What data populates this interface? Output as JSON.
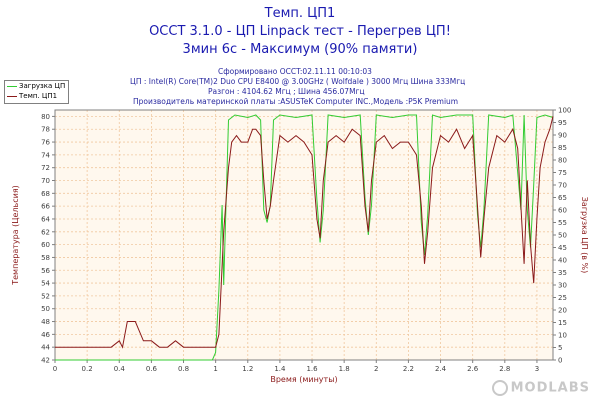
{
  "header": {
    "title1": "Темп. ЦП1",
    "title2": "OCCT 3.1.0 - ЦП Linpack тест - Перегрев ЦП!",
    "title3": "3мин 6с - Максимум (90% памяти)"
  },
  "info": {
    "generated": "Сформировано OCCT:02.11.11 00:10:03",
    "cpu": "ЦП : Intel(R) Core(TM)2 Duo CPU E8400 @ 3.00GHz ( Wolfdale ) 3000 Мгц Шина 333Мгц",
    "overclock": "Разгон : 4104.62 Мгц ; Шина 456.07Мгц",
    "motherboard": "Производитель материнской платы :ASUSTeK Computer INC.,Модель :P5K Premium"
  },
  "legend": {
    "items": [
      {
        "label": "Загрузка ЦП",
        "color": "#33cc33"
      },
      {
        "label": "Темп. ЦП1",
        "color": "#8b1a1a"
      }
    ]
  },
  "watermark": "MODLABS",
  "chart_data": {
    "type": "line",
    "xlabel": "Время (минуты)",
    "ylabel": "Температура (Цельсия)",
    "y2label": "Загрузка ЦП (в %)",
    "xlim": [
      0,
      3.1
    ],
    "ylim": [
      42,
      81
    ],
    "y2lim": [
      0,
      100
    ],
    "x_ticks": [
      "0",
      "0.2",
      "0.4",
      "0.6",
      "0.8",
      "1",
      "1.2",
      "1.4",
      "1.6",
      "1.8",
      "2",
      "2.2",
      "2.4",
      "2.6",
      "2.8",
      "3"
    ],
    "y_ticks": [
      "42",
      "44",
      "46",
      "48",
      "50",
      "52",
      "54",
      "56",
      "58",
      "60",
      "62",
      "64",
      "66",
      "68",
      "70",
      "72",
      "74",
      "76",
      "78",
      "80"
    ],
    "y2_ticks": [
      "0",
      "5",
      "10",
      "15",
      "20",
      "25",
      "30",
      "35",
      "40",
      "45",
      "50",
      "55",
      "60",
      "65",
      "70",
      "75",
      "80",
      "85",
      "90",
      "95",
      "100"
    ],
    "grid": true,
    "legend_position": "top-left",
    "colors": {
      "temp": "#8b1a1a",
      "load": "#33cc33",
      "plot_bg": "#fff8ee",
      "grid": "#f0c8a0"
    },
    "series": [
      {
        "name": "Темп. ЦП1",
        "axis": "left",
        "x": [
          0,
          0.05,
          0.1,
          0.15,
          0.2,
          0.25,
          0.3,
          0.35,
          0.4,
          0.42,
          0.45,
          0.5,
          0.55,
          0.6,
          0.65,
          0.7,
          0.75,
          0.8,
          0.85,
          0.9,
          0.95,
          0.98,
          1.0,
          1.02,
          1.05,
          1.08,
          1.1,
          1.13,
          1.16,
          1.2,
          1.23,
          1.25,
          1.28,
          1.3,
          1.32,
          1.34,
          1.36,
          1.4,
          1.45,
          1.5,
          1.55,
          1.6,
          1.63,
          1.65,
          1.67,
          1.7,
          1.75,
          1.8,
          1.85,
          1.9,
          1.93,
          1.95,
          1.97,
          2.0,
          2.05,
          2.1,
          2.15,
          2.2,
          2.25,
          2.28,
          2.3,
          2.32,
          2.35,
          2.4,
          2.45,
          2.5,
          2.55,
          2.6,
          2.63,
          2.65,
          2.67,
          2.7,
          2.75,
          2.8,
          2.85,
          2.88,
          2.9,
          2.92,
          2.94,
          2.96,
          2.98,
          3.0,
          3.02,
          3.05,
          3.08,
          3.1
        ],
        "values": [
          44,
          44,
          44,
          44,
          44,
          44,
          44,
          44,
          45,
          44,
          48,
          48,
          45,
          45,
          44,
          44,
          45,
          44,
          44,
          44,
          44,
          44,
          44,
          46,
          62,
          72,
          76,
          77,
          76,
          76,
          78,
          78,
          77,
          70,
          64,
          66,
          70,
          77,
          76,
          77,
          76,
          74,
          64,
          61,
          70,
          76,
          77,
          76,
          78,
          77,
          66,
          62,
          70,
          76,
          77,
          75,
          76,
          76,
          74,
          66,
          57,
          62,
          72,
          77,
          76,
          78,
          75,
          77,
          66,
          58,
          64,
          72,
          77,
          76,
          78,
          75,
          66,
          57,
          70,
          60,
          54,
          64,
          72,
          76,
          78,
          80
        ]
      },
      {
        "name": "Загрузка ЦП",
        "axis": "right",
        "x": [
          0,
          0.5,
          0.97,
          0.98,
          1.0,
          1.02,
          1.04,
          1.05,
          1.08,
          1.12,
          1.2,
          1.25,
          1.28,
          1.3,
          1.32,
          1.34,
          1.36,
          1.38,
          1.4,
          1.5,
          1.6,
          1.63,
          1.65,
          1.67,
          1.7,
          1.8,
          1.9,
          1.93,
          1.95,
          1.97,
          2.0,
          2.1,
          2.2,
          2.25,
          2.28,
          2.3,
          2.32,
          2.35,
          2.4,
          2.5,
          2.6,
          2.63,
          2.65,
          2.67,
          2.7,
          2.8,
          2.85,
          2.88,
          2.9,
          2.92,
          2.94,
          2.96,
          2.98,
          3.0,
          3.05,
          3.1
        ],
        "values": [
          0,
          0,
          0,
          0,
          3,
          28,
          62,
          30,
          96,
          98,
          97,
          98,
          96,
          60,
          55,
          62,
          96,
          97,
          98,
          97,
          98,
          64,
          47,
          60,
          98,
          97,
          98,
          65,
          50,
          62,
          98,
          97,
          98,
          98,
          55,
          42,
          58,
          98,
          97,
          98,
          98,
          58,
          45,
          60,
          98,
          97,
          98,
          75,
          60,
          98,
          60,
          45,
          70,
          97,
          98,
          97
        ]
      }
    ]
  }
}
